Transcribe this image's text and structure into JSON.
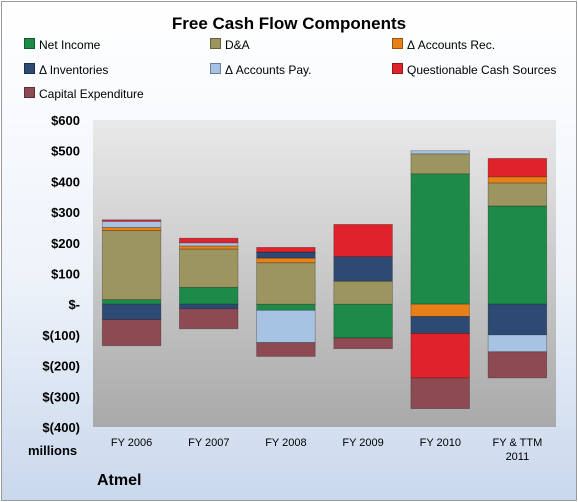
{
  "chart_data": {
    "type": "bar",
    "stacked": true,
    "title": "Free Cash Flow Components",
    "categories": [
      "FY 2006",
      "FY 2007",
      "FY 2008",
      "FY 2009",
      "FY 2010",
      "FY & TTM 2011"
    ],
    "ylim": [
      -400,
      600
    ],
    "yticks": [
      600,
      500,
      400,
      300,
      200,
      100,
      0,
      -100,
      -200,
      -300,
      -400
    ],
    "ytick_labels": [
      "$600",
      "$500",
      "$400",
      "$300",
      "$200",
      "$100",
      "$-",
      "$(100)",
      "$(200)",
      "$(300)",
      "$(400)"
    ],
    "units_label": "millions",
    "grid": false,
    "legend_position": "top",
    "series": [
      {
        "name": "Net Income",
        "color": "#1e8a4a",
        "values": [
          15,
          55,
          -20,
          -110,
          425,
          320
        ]
      },
      {
        "name": "D&A",
        "color": "#9c955f",
        "values": [
          225,
          125,
          135,
          75,
          65,
          75
        ]
      },
      {
        "name": "Δ Accounts Rec.",
        "color": "#e8801a",
        "values": [
          10,
          10,
          15,
          0,
          -40,
          20
        ]
      },
      {
        "name": "Δ Inventories",
        "color": "#2c4a74",
        "values": [
          -50,
          -15,
          20,
          80,
          -55,
          -100
        ]
      },
      {
        "name": "Δ Accounts Pay.",
        "color": "#a6c3e3",
        "values": [
          20,
          10,
          -105,
          0,
          10,
          -55
        ]
      },
      {
        "name": "Questionable Cash Sources",
        "color": "#e0232a",
        "values": [
          5,
          15,
          15,
          105,
          -145,
          60
        ]
      },
      {
        "name": "Capital Expenditure",
        "color": "#8e4a52",
        "values": [
          -85,
          -65,
          -45,
          -35,
          -100,
          -85
        ]
      }
    ]
  },
  "footer": {
    "company": "Atmel"
  }
}
